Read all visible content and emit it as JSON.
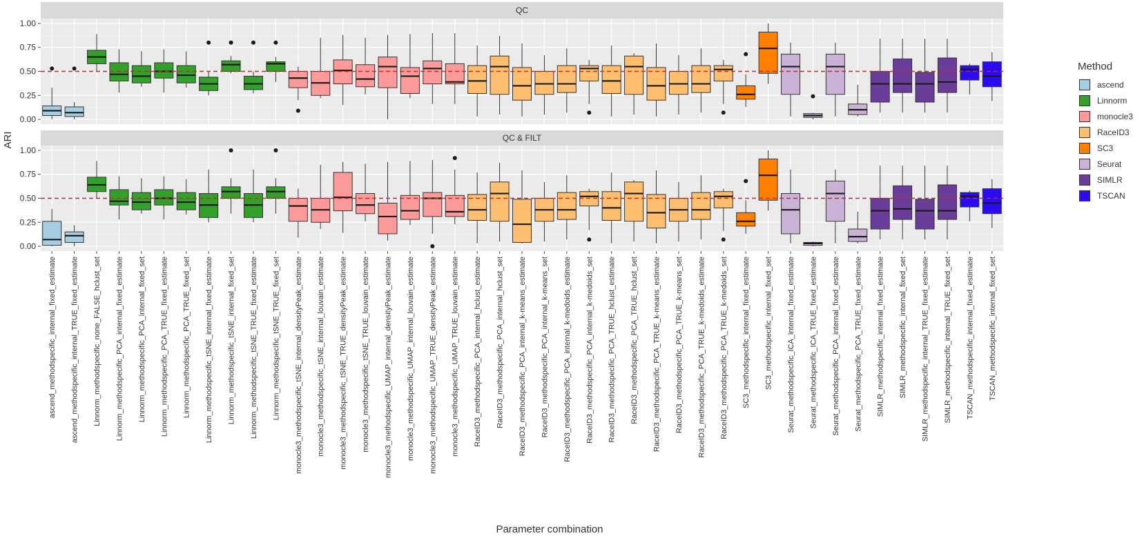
{
  "chart_data": {
    "type": "boxplot",
    "ylabel": "ARI",
    "xlabel": "Parameter combination",
    "ylim": [
      -0.05,
      1.05
    ],
    "y_ticks": [
      0.0,
      0.25,
      0.5,
      0.75,
      1.0
    ],
    "y_tick_labels": [
      "0.00",
      "0.25",
      "0.50",
      "0.75",
      "1.00"
    ],
    "reference_line": 0.5,
    "reference_line_color": "#e41a1c",
    "legend": {
      "title": "Method",
      "position": "right",
      "entries": [
        {
          "name": "ascend",
          "color": "#a6cee3"
        },
        {
          "name": "Linnorm",
          "color": "#33a02c"
        },
        {
          "name": "monocle3",
          "color": "#fb9a99"
        },
        {
          "name": "RaceID3",
          "color": "#fdbf6f"
        },
        {
          "name": "SC3",
          "color": "#ff7f00"
        },
        {
          "name": "Seurat",
          "color": "#cab2d6"
        },
        {
          "name": "SIMLR",
          "color": "#6a3d9a"
        },
        {
          "name": "TSCAN",
          "color": "#2b0bf0"
        }
      ]
    },
    "categories": [
      {
        "label": "ascend_methodspecific_internal_fixed_estimate",
        "method": "ascend"
      },
      {
        "label": "ascend_methodspecific_internal_TRUE_fixed_estimate",
        "method": "ascend"
      },
      {
        "label": "Linnorm_methodspecific_none_FALSE_hclust_set",
        "method": "Linnorm"
      },
      {
        "label": "Linnorm_methodspecific_PCA_internal_fixed_estimate",
        "method": "Linnorm"
      },
      {
        "label": "Linnorm_methodspecific_PCA_internal_fixed_set",
        "method": "Linnorm"
      },
      {
        "label": "Linnorm_methodspecific_PCA_TRUE_fixed_estimate",
        "method": "Linnorm"
      },
      {
        "label": "Linnorm_methodspecific_PCA_TRUE_fixed_set",
        "method": "Linnorm"
      },
      {
        "label": "Linnorm_methodspecific_tSNE_internal_fixed_estimate",
        "method": "Linnorm"
      },
      {
        "label": "Linnorm_methodspecific_tSNE_internal_fixed_set",
        "method": "Linnorm"
      },
      {
        "label": "Linnorm_methodspecific_tSNE_TRUE_fixed_estimate",
        "method": "Linnorm"
      },
      {
        "label": "Linnorm_methodspecific_tSNE_TRUE_fixed_set",
        "method": "Linnorm"
      },
      {
        "label": "monocle3_methodspecific_tSNE_internal_densityPeak_estimate",
        "method": "monocle3"
      },
      {
        "label": "monocle3_methodspecific_tSNE_internal_louvain_estimate",
        "method": "monocle3"
      },
      {
        "label": "monocle3_methodspecific_tSNE_TRUE_densityPeak_estimate",
        "method": "monocle3"
      },
      {
        "label": "monocle3_methodspecific_tSNE_TRUE_louvain_estimate",
        "method": "monocle3"
      },
      {
        "label": "monocle3_methodspecific_UMAP_internal_densityPeak_estimate",
        "method": "monocle3"
      },
      {
        "label": "monocle3_methodspecific_UMAP_internal_louvain_estimate",
        "method": "monocle3"
      },
      {
        "label": "monocle3_methodspecific_UMAP_TRUE_densityPeak_estimate",
        "method": "monocle3"
      },
      {
        "label": "monocle3_methodspecific_UMAP_TRUE_louvain_estimate",
        "method": "monocle3"
      },
      {
        "label": "RaceID3_methodspecific_PCA_internal_hclust_estimate",
        "method": "RaceID3"
      },
      {
        "label": "RaceID3_methodspecific_PCA_internal_hclust_set",
        "method": "RaceID3"
      },
      {
        "label": "RaceID3_methodspecific_PCA_internal_k-means_estimate",
        "method": "RaceID3"
      },
      {
        "label": "RaceID3_methodspecific_PCA_internal_k-means_set",
        "method": "RaceID3"
      },
      {
        "label": "RaceID3_methodspecific_PCA_internal_k-medoids_estimate",
        "method": "RaceID3"
      },
      {
        "label": "RaceID3_methodspecific_PCA_internal_k-medoids_set",
        "method": "RaceID3"
      },
      {
        "label": "RaceID3_methodspecific_PCA_TRUE_hclust_estimate",
        "method": "RaceID3"
      },
      {
        "label": "RaceID3_methodspecific_PCA_TRUE_hclust_set",
        "method": "RaceID3"
      },
      {
        "label": "RaceID3_methodspecific_PCA_TRUE_k-means_estimate",
        "method": "RaceID3"
      },
      {
        "label": "RaceID3_methodspecific_PCA_TRUE_k-means_set",
        "method": "RaceID3"
      },
      {
        "label": "RaceID3_methodspecific_PCA_TRUE_k-medoids_estimate",
        "method": "RaceID3"
      },
      {
        "label": "RaceID3_methodspecific_PCA_TRUE_k-medoids_set",
        "method": "RaceID3"
      },
      {
        "label": "SC3_methodspecific_internal_fixed_estimate",
        "method": "SC3"
      },
      {
        "label": "SC3_methodspecific_internal_fixed_set",
        "method": "SC3"
      },
      {
        "label": "Seurat_methodspecific_ICA_internal_fixed_estimate",
        "method": "Seurat"
      },
      {
        "label": "Seurat_methodspecific_ICA_TRUE_fixed_estimate",
        "method": "Seurat"
      },
      {
        "label": "Seurat_methodspecific_PCA_internal_fixed_estimate",
        "method": "Seurat"
      },
      {
        "label": "Seurat_methodspecific_PCA_TRUE_fixed_estimate",
        "method": "Seurat"
      },
      {
        "label": "SIMLR_methodspecific_internal_fixed_estimate",
        "method": "SIMLR"
      },
      {
        "label": "SIMLR_methodspecific_internal_fixed_set",
        "method": "SIMLR"
      },
      {
        "label": "SIMLR_methodspecific_internal_TRUE_fixed_estimate",
        "method": "SIMLR"
      },
      {
        "label": "SIMLR_methodspecific_internal_TRUE_fixed_set",
        "method": "SIMLR"
      },
      {
        "label": "TSCAN_methodspecific_internal_fixed_estimate",
        "method": "TSCAN"
      },
      {
        "label": "TSCAN_methodspecific_internal_fixed_set",
        "method": "TSCAN"
      }
    ],
    "panels": [
      {
        "title": "QC",
        "boxes": [
          [
            0.0,
            0.04,
            0.09,
            0.14,
            0.33,
            [
              0.53
            ]
          ],
          [
            0.0,
            0.03,
            0.07,
            0.13,
            0.18,
            [
              0.53
            ]
          ],
          [
            0.5,
            0.58,
            0.65,
            0.72,
            0.89,
            []
          ],
          [
            0.28,
            0.4,
            0.47,
            0.59,
            0.73,
            []
          ],
          [
            0.34,
            0.38,
            0.45,
            0.56,
            0.71,
            []
          ],
          [
            0.28,
            0.43,
            0.5,
            0.59,
            0.73,
            []
          ],
          [
            0.33,
            0.38,
            0.46,
            0.56,
            0.71,
            []
          ],
          [
            0.25,
            0.3,
            0.37,
            0.44,
            0.5,
            [
              0.8
            ]
          ],
          [
            0.48,
            0.5,
            0.57,
            0.61,
            0.66,
            [
              0.8
            ]
          ],
          [
            0.27,
            0.31,
            0.37,
            0.45,
            0.5,
            [
              0.8
            ]
          ],
          [
            0.39,
            0.5,
            0.58,
            0.6,
            0.65,
            [
              0.8
            ]
          ],
          [
            0.2,
            0.33,
            0.43,
            0.5,
            0.55,
            [
              0.09
            ]
          ],
          [
            0.22,
            0.25,
            0.38,
            0.5,
            0.85,
            []
          ],
          [
            0.15,
            0.37,
            0.51,
            0.62,
            0.88,
            []
          ],
          [
            0.26,
            0.34,
            0.42,
            0.57,
            0.85,
            []
          ],
          [
            0.0,
            0.33,
            0.55,
            0.65,
            0.88,
            []
          ],
          [
            0.22,
            0.27,
            0.45,
            0.54,
            0.89,
            []
          ],
          [
            0.16,
            0.37,
            0.53,
            0.61,
            0.9,
            []
          ],
          [
            0.16,
            0.37,
            0.39,
            0.58,
            0.9,
            []
          ],
          [
            0.03,
            0.27,
            0.4,
            0.56,
            0.77,
            []
          ],
          [
            0.05,
            0.26,
            0.55,
            0.66,
            0.87,
            []
          ],
          [
            0.03,
            0.2,
            0.35,
            0.54,
            0.79,
            []
          ],
          [
            0.05,
            0.26,
            0.37,
            0.5,
            0.67,
            []
          ],
          [
            0.07,
            0.28,
            0.37,
            0.56,
            0.74,
            []
          ],
          [
            0.16,
            0.4,
            0.53,
            0.56,
            0.62,
            [
              0.07
            ]
          ],
          [
            0.03,
            0.27,
            0.4,
            0.56,
            0.77,
            []
          ],
          [
            0.05,
            0.26,
            0.55,
            0.66,
            0.69,
            []
          ],
          [
            0.03,
            0.2,
            0.35,
            0.54,
            0.79,
            []
          ],
          [
            0.05,
            0.26,
            0.37,
            0.5,
            0.67,
            []
          ],
          [
            0.07,
            0.28,
            0.37,
            0.56,
            0.74,
            []
          ],
          [
            0.16,
            0.4,
            0.52,
            0.56,
            0.62,
            [
              0.07
            ]
          ],
          [
            0.13,
            0.21,
            0.26,
            0.35,
            0.47,
            [
              0.68
            ]
          ],
          [
            0.37,
            0.48,
            0.74,
            0.91,
            1.0,
            []
          ],
          [
            0.03,
            0.26,
            0.55,
            0.68,
            0.8,
            []
          ],
          [
            0.0,
            0.02,
            0.04,
            0.06,
            0.07,
            [
              0.24
            ]
          ],
          [
            0.03,
            0.26,
            0.55,
            0.68,
            0.8,
            []
          ],
          [
            0.03,
            0.05,
            0.1,
            0.16,
            0.36,
            []
          ],
          [
            0.07,
            0.18,
            0.37,
            0.5,
            0.84,
            []
          ],
          [
            0.07,
            0.28,
            0.37,
            0.63,
            0.84,
            []
          ],
          [
            0.07,
            0.18,
            0.37,
            0.49,
            0.84,
            []
          ],
          [
            0.07,
            0.28,
            0.39,
            0.64,
            0.84,
            []
          ],
          [
            0.26,
            0.41,
            0.52,
            0.56,
            0.58,
            []
          ],
          [
            0.19,
            0.34,
            0.45,
            0.6,
            0.7,
            []
          ]
        ]
      },
      {
        "title": "QC & FILT",
        "boxes": [
          [
            0.0,
            0.01,
            0.07,
            0.26,
            0.39,
            []
          ],
          [
            0.0,
            0.04,
            0.11,
            0.15,
            0.22,
            []
          ],
          [
            0.5,
            0.57,
            0.64,
            0.72,
            0.89,
            []
          ],
          [
            0.28,
            0.43,
            0.47,
            0.59,
            0.73,
            []
          ],
          [
            0.34,
            0.38,
            0.46,
            0.56,
            0.71,
            []
          ],
          [
            0.28,
            0.43,
            0.5,
            0.59,
            0.73,
            []
          ],
          [
            0.33,
            0.38,
            0.46,
            0.56,
            0.7,
            []
          ],
          [
            0.25,
            0.3,
            0.43,
            0.55,
            0.8,
            []
          ],
          [
            0.34,
            0.5,
            0.57,
            0.62,
            0.71,
            [
              1.0
            ]
          ],
          [
            0.25,
            0.3,
            0.43,
            0.55,
            0.8,
            []
          ],
          [
            0.34,
            0.5,
            0.57,
            0.62,
            0.71,
            [
              1.0
            ]
          ],
          [
            0.09,
            0.26,
            0.42,
            0.5,
            0.6,
            []
          ],
          [
            0.18,
            0.25,
            0.38,
            0.5,
            0.85,
            []
          ],
          [
            0.14,
            0.37,
            0.51,
            0.77,
            0.88,
            []
          ],
          [
            0.26,
            0.34,
            0.43,
            0.55,
            0.86,
            []
          ],
          [
            0.06,
            0.13,
            0.31,
            0.45,
            0.88,
            []
          ],
          [
            0.22,
            0.28,
            0.37,
            0.53,
            0.89,
            []
          ],
          [
            0.13,
            0.31,
            0.5,
            0.56,
            0.9,
            [
              0.0
            ]
          ],
          [
            0.23,
            0.31,
            0.36,
            0.53,
            0.8,
            [
              0.92
            ]
          ],
          [
            0.03,
            0.27,
            0.38,
            0.54,
            0.77,
            []
          ],
          [
            0.05,
            0.26,
            0.55,
            0.67,
            0.87,
            []
          ],
          [
            0.03,
            0.04,
            0.23,
            0.49,
            0.79,
            []
          ],
          [
            0.05,
            0.26,
            0.38,
            0.5,
            0.67,
            []
          ],
          [
            0.07,
            0.28,
            0.38,
            0.56,
            0.74,
            []
          ],
          [
            0.17,
            0.42,
            0.52,
            0.57,
            0.6,
            [
              0.07
            ]
          ],
          [
            0.03,
            0.27,
            0.4,
            0.57,
            0.77,
            []
          ],
          [
            0.05,
            0.26,
            0.55,
            0.67,
            0.69,
            []
          ],
          [
            0.03,
            0.19,
            0.35,
            0.54,
            0.79,
            []
          ],
          [
            0.05,
            0.26,
            0.38,
            0.5,
            0.67,
            []
          ],
          [
            0.07,
            0.28,
            0.38,
            0.56,
            0.74,
            []
          ],
          [
            0.16,
            0.4,
            0.52,
            0.57,
            0.6,
            [
              0.07
            ]
          ],
          [
            0.13,
            0.21,
            0.26,
            0.35,
            0.48,
            [
              0.68
            ]
          ],
          [
            0.37,
            0.48,
            0.74,
            0.91,
            1.0,
            []
          ],
          [
            0.03,
            0.13,
            0.38,
            0.55,
            0.8,
            []
          ],
          [
            0.0,
            0.01,
            0.03,
            0.04,
            0.05,
            []
          ],
          [
            0.03,
            0.26,
            0.55,
            0.68,
            0.8,
            []
          ],
          [
            0.03,
            0.05,
            0.1,
            0.18,
            0.36,
            []
          ],
          [
            0.07,
            0.18,
            0.37,
            0.5,
            0.84,
            []
          ],
          [
            0.07,
            0.28,
            0.39,
            0.63,
            0.84,
            []
          ],
          [
            0.07,
            0.18,
            0.37,
            0.49,
            0.84,
            []
          ],
          [
            0.07,
            0.28,
            0.37,
            0.64,
            0.84,
            []
          ],
          [
            0.26,
            0.41,
            0.52,
            0.56,
            0.58,
            []
          ],
          [
            0.19,
            0.34,
            0.45,
            0.6,
            0.7,
            []
          ]
        ]
      }
    ]
  }
}
